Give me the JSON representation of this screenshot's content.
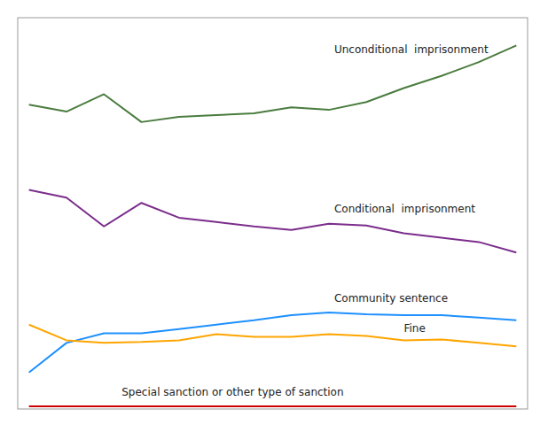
{
  "chart_data": {
    "type": "line",
    "x": [
      0,
      1,
      2,
      3,
      4,
      5,
      6,
      7,
      8,
      9,
      10,
      11,
      12,
      13
    ],
    "xlim": [
      -0.3,
      13.3
    ],
    "ylim": [
      0,
      4500
    ],
    "xticks": [],
    "yticks": [],
    "tick_labels": false,
    "grid": false,
    "series": [
      {
        "name": "Unconditional  imprisonment",
        "color": "#4a7c3f",
        "values": [
          3500,
          3420,
          3620,
          3300,
          3360,
          3380,
          3400,
          3470,
          3440,
          3530,
          3690,
          3830,
          3990,
          4180
        ]
      },
      {
        "name": "Conditional  imprisonment",
        "color": "#7b2d8b",
        "values": [
          2520,
          2430,
          2100,
          2370,
          2200,
          2150,
          2100,
          2060,
          2130,
          2110,
          2020,
          1970,
          1920,
          1800
        ]
      },
      {
        "name": "Community sentence",
        "color": "#1e90ff",
        "values": [
          420,
          760,
          870,
          870,
          920,
          970,
          1020,
          1080,
          1110,
          1090,
          1080,
          1080,
          1050,
          1020
        ]
      },
      {
        "name": "Fine",
        "color": "#ffa500",
        "values": [
          970,
          790,
          760,
          770,
          790,
          860,
          830,
          830,
          860,
          840,
          790,
          800,
          760,
          720
        ]
      },
      {
        "name": "Special sanction or other type of sanction",
        "color": "#cc0000",
        "values": [
          30,
          30,
          30,
          30,
          30,
          30,
          30,
          30,
          30,
          30,
          30,
          30,
          30,
          30
        ]
      }
    ]
  }
}
